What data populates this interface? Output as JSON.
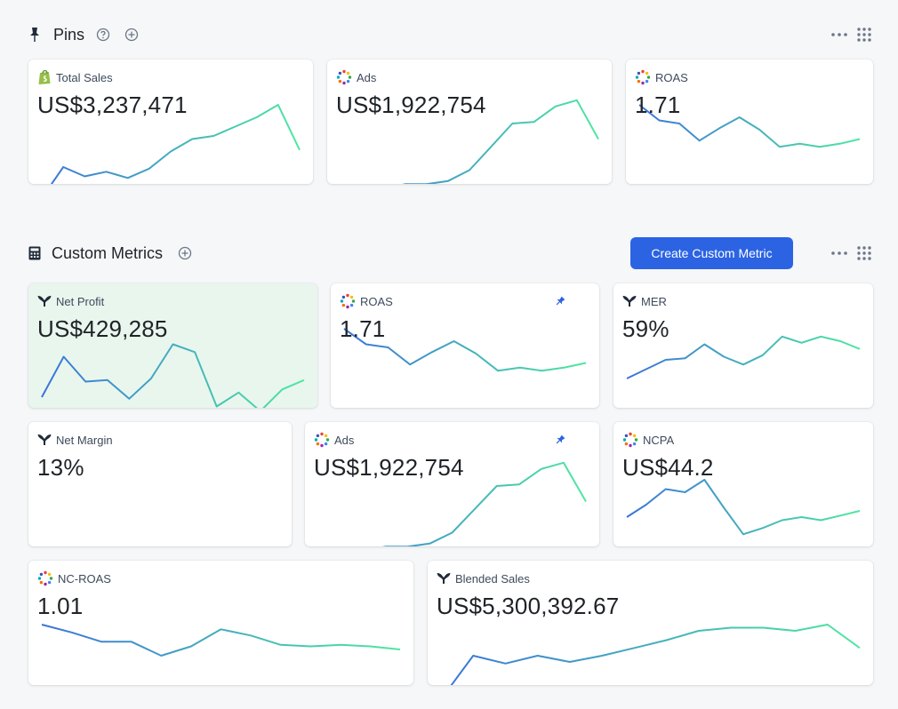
{
  "pins_section": {
    "title": "Pins",
    "help_icon": "question-circle-icon",
    "add_icon": "plus-circle-icon",
    "section_icon": "pushpin-icon"
  },
  "custom_section": {
    "title": "Custom Metrics",
    "section_icon": "calculator-icon",
    "add_icon": "plus-circle-icon",
    "create_button": "Create Custom Metric"
  },
  "colors": {
    "line_start": "#3b74d9",
    "line_end": "#4ee8a0",
    "accent": "#2b63e3",
    "highlight_bg": "#e9f6ee"
  },
  "cards": [
    {
      "id": "pins-total-sales",
      "label": "Total Sales",
      "value": "US$3,237,471",
      "icon": "shopify-icon",
      "pinned": false,
      "series": [
        12,
        32,
        26,
        29,
        25,
        31,
        42,
        50,
        52,
        58,
        64,
        72,
        43
      ]
    },
    {
      "id": "pins-ads",
      "label": "Ads",
      "value": "US$1,922,754",
      "icon": "colorful-dots-icon",
      "pinned": false,
      "series": [
        5,
        20,
        18,
        21,
        21,
        23,
        30,
        45,
        60,
        61,
        71,
        75,
        50
      ]
    },
    {
      "id": "pins-roas",
      "label": "ROAS",
      "value": "1.71",
      "icon": "colorful-dots-icon",
      "pinned": false,
      "series": [
        72,
        62,
        60,
        49,
        57,
        64,
        56,
        45,
        47,
        45,
        47,
        50
      ]
    },
    {
      "id": "cm-net-profit",
      "label": "Net Profit",
      "value": "US$429,285",
      "icon": "triple-whale-icon",
      "pinned": false,
      "highlight": true,
      "series": [
        28,
        54,
        38,
        39,
        27,
        40,
        62,
        57,
        22,
        31,
        19,
        33,
        39
      ]
    },
    {
      "id": "cm-roas",
      "label": "ROAS",
      "value": "1.71",
      "icon": "colorful-dots-icon",
      "pinned": true,
      "series": [
        72,
        62,
        60,
        49,
        57,
        64,
        56,
        45,
        47,
        45,
        47,
        50
      ]
    },
    {
      "id": "cm-mer",
      "label": "MER",
      "value": "59%",
      "icon": "triple-whale-icon",
      "pinned": false,
      "series": [
        40,
        46,
        52,
        53,
        62,
        54,
        49,
        55,
        67,
        63,
        67,
        64,
        59
      ]
    },
    {
      "id": "cm-net-margin",
      "label": "Net Margin",
      "value": "13%",
      "icon": "triple-whale-icon",
      "pinned": false,
      "series": []
    },
    {
      "id": "cm-ads",
      "label": "Ads",
      "value": "US$1,922,754",
      "icon": "colorful-dots-icon",
      "pinned": true,
      "series": [
        5,
        20,
        18,
        21,
        21,
        23,
        30,
        45,
        60,
        61,
        71,
        75,
        50
      ]
    },
    {
      "id": "cm-ncpa",
      "label": "NCPA",
      "value": "US$44.2",
      "icon": "colorful-dots-icon",
      "pinned": false,
      "series": [
        40,
        48,
        58,
        56,
        64,
        46,
        29,
        33,
        38,
        40,
        38,
        41,
        44
      ]
    },
    {
      "id": "cm-nc-roas",
      "label": "NC-ROAS",
      "value": "1.01",
      "icon": "colorful-dots-icon",
      "pinned": false,
      "series": [
        60,
        55,
        49,
        49,
        40,
        46,
        57,
        53,
        47,
        46,
        47,
        46,
        44
      ]
    },
    {
      "id": "cm-blended-sales",
      "label": "Blended Sales",
      "value": "US$5,300,392.67",
      "icon": "triple-whale-icon",
      "pinned": false,
      "series": [
        12,
        40,
        35,
        40,
        36,
        40,
        45,
        50,
        56,
        58,
        58,
        56,
        60,
        45
      ]
    }
  ]
}
